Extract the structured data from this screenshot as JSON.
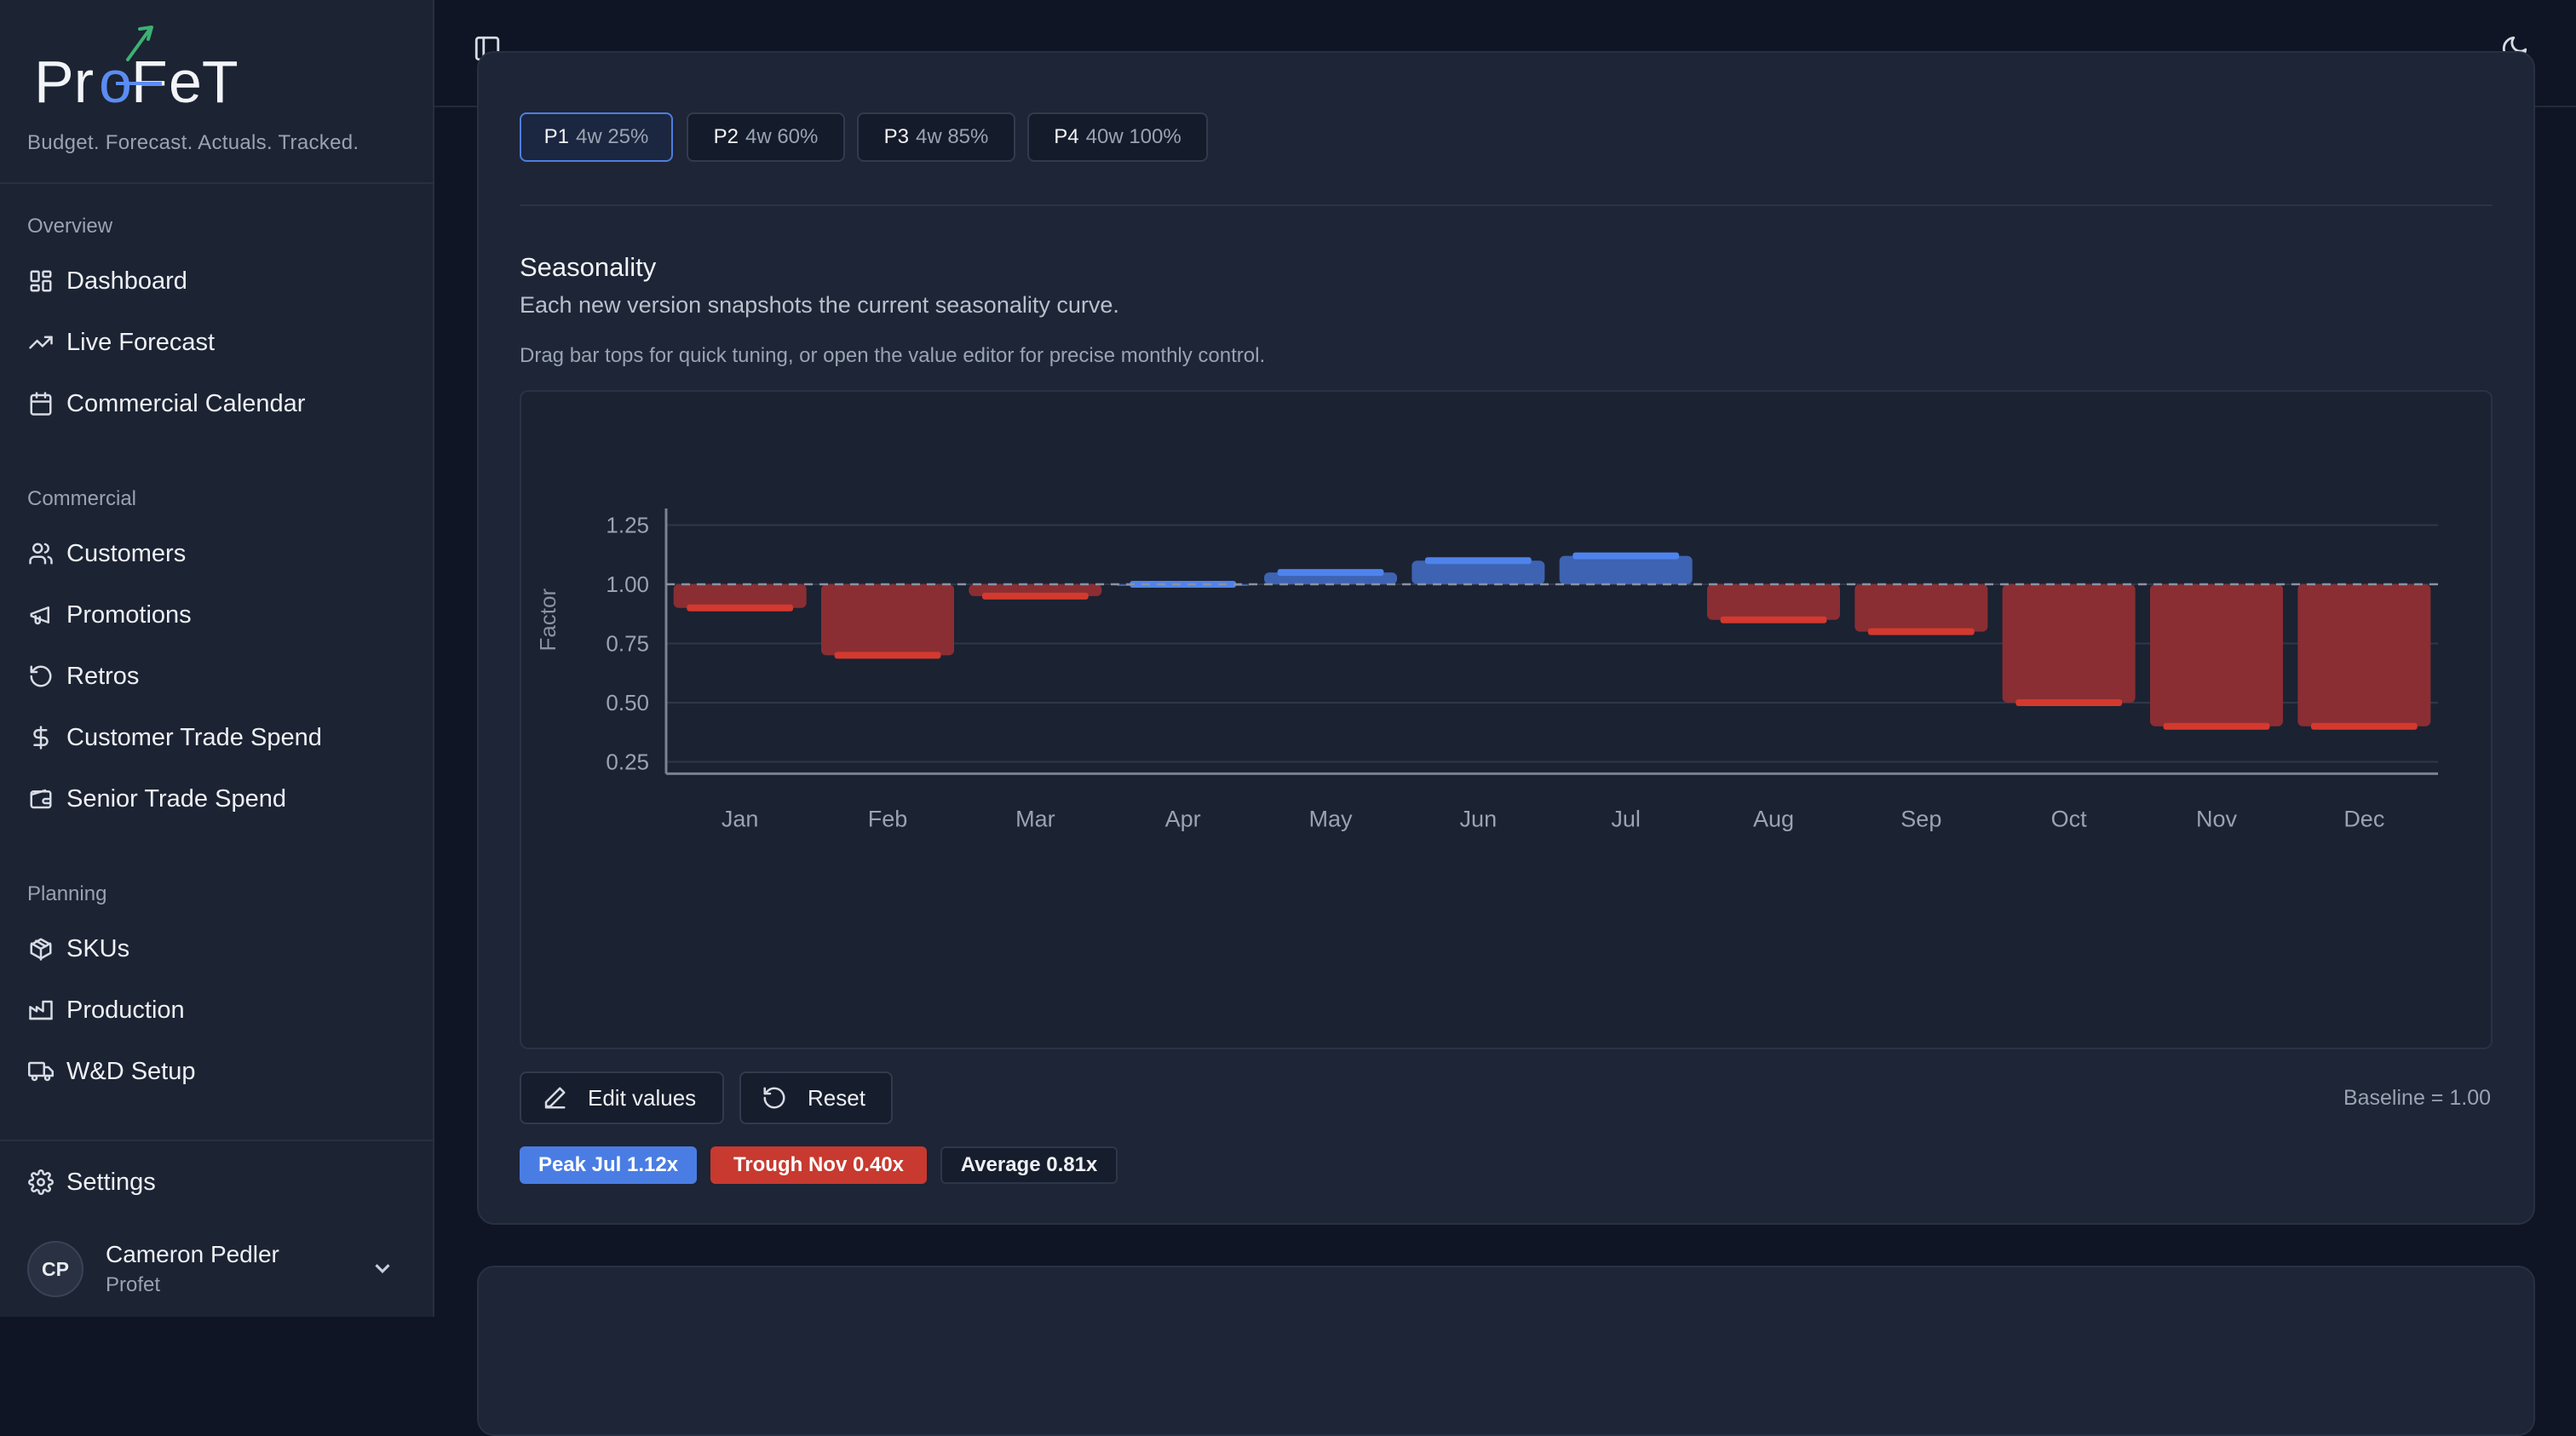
{
  "brand": {
    "name": "ProFeT",
    "tagline": "Budget. Forecast. Actuals. Tracked."
  },
  "sidebar": {
    "sections": [
      {
        "label": "Overview",
        "items": [
          {
            "label": "Dashboard",
            "icon": "dashboard-icon"
          },
          {
            "label": "Live Forecast",
            "icon": "trending-up-icon"
          },
          {
            "label": "Commercial Calendar",
            "icon": "calendar-icon"
          }
        ]
      },
      {
        "label": "Commercial",
        "items": [
          {
            "label": "Customers",
            "icon": "users-icon"
          },
          {
            "label": "Promotions",
            "icon": "megaphone-icon"
          },
          {
            "label": "Retros",
            "icon": "rotate-ccw-icon"
          },
          {
            "label": "Customer Trade Spend",
            "icon": "dollar-icon"
          },
          {
            "label": "Senior Trade Spend",
            "icon": "wallet-icon"
          }
        ]
      },
      {
        "label": "Planning",
        "items": [
          {
            "label": "SKUs",
            "icon": "package-icon"
          },
          {
            "label": "Production",
            "icon": "factory-icon"
          },
          {
            "label": "W&D Setup",
            "icon": "truck-icon"
          }
        ]
      }
    ],
    "settings_label": "Settings",
    "user": {
      "initials": "CP",
      "name": "Cameron Pedler",
      "org": "Profet"
    }
  },
  "phases": [
    {
      "name": "P1",
      "detail": "4w 25%",
      "active": true
    },
    {
      "name": "P2",
      "detail": "4w 60%",
      "active": false
    },
    {
      "name": "P3",
      "detail": "4w 85%",
      "active": false
    },
    {
      "name": "P4",
      "detail": "40w 100%",
      "active": false
    }
  ],
  "seasonality": {
    "title": "Seasonality",
    "subtitle": "Each new version snapshots the current seasonality curve.",
    "hint": "Drag bar tops for quick tuning, or open the value editor for precise monthly control.",
    "edit_label": "Edit values",
    "reset_label": "Reset",
    "baseline_label": "Baseline = 1.00",
    "peak_label": "Peak Jul 1.12x",
    "trough_label": "Trough Nov 0.40x",
    "average_label": "Average 0.81x"
  },
  "colors": {
    "above": "#3d63b2",
    "above_handle": "#4f83ec",
    "below": "#8a2e33",
    "below_handle": "#d4392e"
  },
  "chart_data": {
    "type": "bar",
    "categories": [
      "Jan",
      "Feb",
      "Mar",
      "Apr",
      "May",
      "Jun",
      "Jul",
      "Aug",
      "Sep",
      "Oct",
      "Nov",
      "Dec"
    ],
    "values": [
      0.9,
      0.7,
      0.95,
      1.0,
      1.05,
      1.1,
      1.12,
      0.85,
      0.8,
      0.5,
      0.4,
      0.4
    ],
    "baseline": 1.0,
    "ylabel": "Factor",
    "yticks": [
      "1.25",
      "1.00",
      "0.75",
      "0.50",
      "0.25"
    ],
    "ylim": [
      0.2,
      1.3
    ],
    "grid": true
  }
}
